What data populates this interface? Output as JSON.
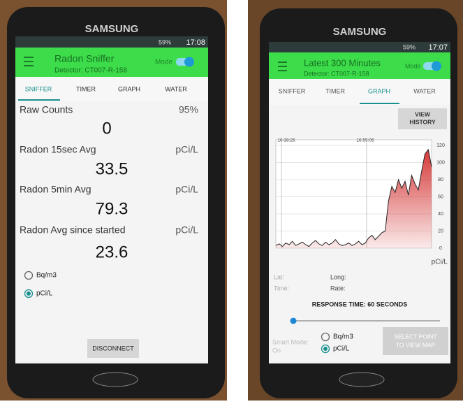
{
  "left": {
    "brand": "SAMSUNG",
    "time": "17:08",
    "battery": "59%",
    "header": {
      "title": "Radon Sniffer",
      "subtitle": "Detector: CT007-R-158",
      "mode": "Mode"
    },
    "tabs": [
      "SNIFFER",
      "TIMER",
      "GRAPH",
      "WATER"
    ],
    "readings": [
      {
        "label": "Raw Counts",
        "unit": "95%",
        "value": "0"
      },
      {
        "label": "Radon 15sec Avg",
        "unit": "pCi/L",
        "value": "33.5"
      },
      {
        "label": "Radon 5min Avg",
        "unit": "pCi/L",
        "value": "79.3"
      },
      {
        "label": "Radon Avg since started",
        "unit": "pCi/L",
        "value": "23.6"
      }
    ],
    "radios": [
      "Bq/m3",
      "pCi/L"
    ],
    "button": "DISCONNECT"
  },
  "right": {
    "brand": "SAMSUNG",
    "time": "17:07",
    "battery": "59%",
    "header": {
      "title": "Latest 300 Minutes",
      "subtitle": "Detector: CT007-R-158",
      "mode": "Mode"
    },
    "tabs": [
      "SNIFFER",
      "TIMER",
      "GRAPH",
      "WATER"
    ],
    "history_button": [
      "VIEW",
      "HISTORY"
    ],
    "chart": {
      "type": "area",
      "x_labels": [
        "16:38:26",
        "16:55:06"
      ],
      "values": [
        3,
        5,
        2,
        6,
        4,
        8,
        3,
        5,
        7,
        4,
        2,
        6,
        9,
        5,
        3,
        7,
        4,
        6,
        10,
        5,
        3,
        4,
        6,
        3,
        5,
        8,
        4,
        6,
        12,
        15,
        10,
        14,
        18,
        20,
        55,
        72,
        65,
        80,
        70,
        78,
        62,
        85,
        75,
        68,
        90,
        110,
        115,
        95
      ],
      "ylim": [
        0,
        120
      ],
      "yticks": [
        0,
        20,
        40,
        60,
        80,
        100,
        120
      ],
      "unit": "pCi/L",
      "color": "#d32f2f",
      "grid": true
    },
    "fields": [
      "Lat:",
      "Long:",
      "Time:",
      "Rate:"
    ],
    "response": "RESPONSE TIME: 60 SECONDS",
    "smart_mode": [
      "Smart Mode:",
      "On"
    ],
    "radios": [
      "Bq/m3",
      "pCi/L"
    ],
    "map_button": [
      "SELECT POINT",
      "TO VIEW MAP"
    ]
  }
}
